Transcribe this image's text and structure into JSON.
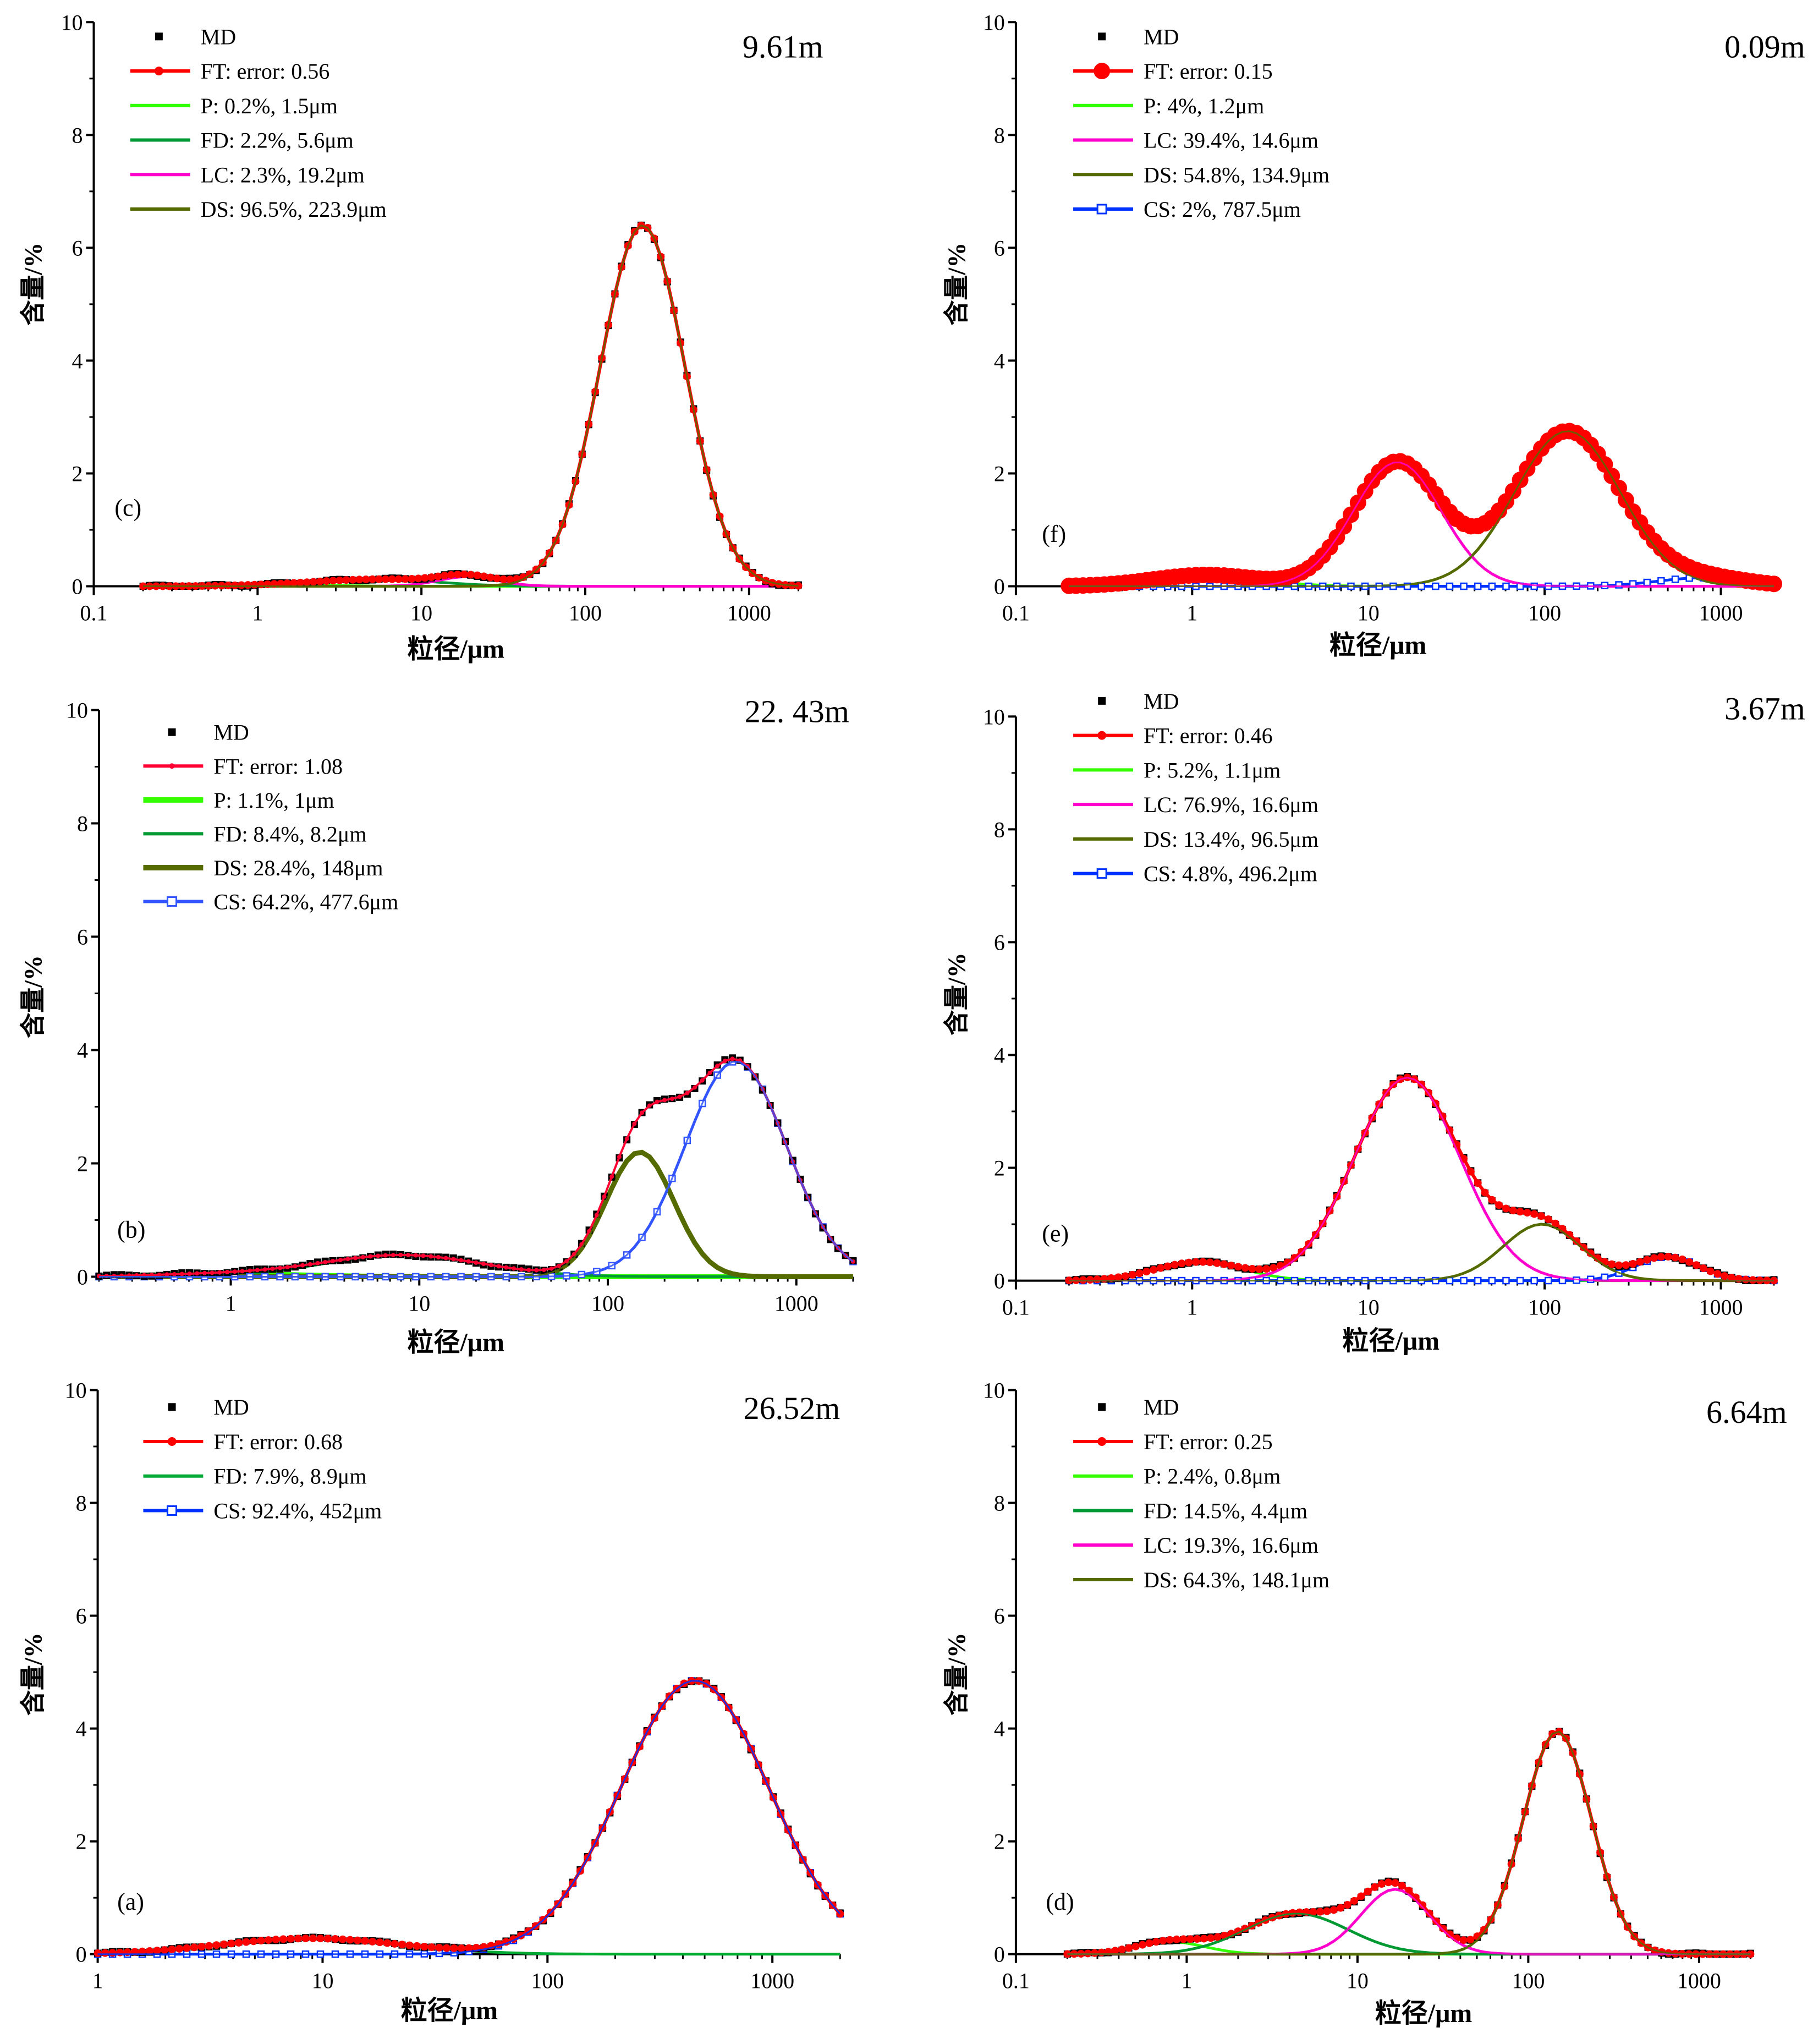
{
  "figure": {
    "panels_count": 6
  },
  "chart_data": [
    {
      "id": "c",
      "type": "line",
      "panel_label": "(c)",
      "depth_label": "9.61m",
      "xlabel": "粒径/μm",
      "ylabel": "含量/%",
      "xscale": "log",
      "xlim": [
        0.1,
        2000
      ],
      "ylim": [
        0,
        10
      ],
      "xticks": [
        "0.1",
        "1",
        "10",
        "100",
        "1000"
      ],
      "yticks": [
        "0",
        "2",
        "4",
        "6",
        "8",
        "10"
      ],
      "data_range": [
        0.2,
        2000
      ],
      "legend": [
        {
          "key": "MD",
          "label": "MD",
          "color": "#000000",
          "style": "square"
        },
        {
          "key": "FT",
          "label": "FT: error: 0.56",
          "color": "#ff0000",
          "style": "line-dot"
        },
        {
          "key": "P",
          "label": "P: 0.2%, 1.5μm",
          "color": "#33ff00",
          "style": "line"
        },
        {
          "key": "FD",
          "label": "FD: 2.2%, 5.6μm",
          "color": "#009933",
          "style": "line"
        },
        {
          "key": "LC",
          "label": "LC: 2.3%, 19.2μm",
          "color": "#ff00cc",
          "style": "line"
        },
        {
          "key": "DS",
          "label": "DS: 96.5%, 223.9μm",
          "color": "#556b00",
          "style": "line"
        }
      ],
      "components": [
        {
          "key": "P",
          "mode": 1.5,
          "peak": 0.02,
          "sigma": 0.3
        },
        {
          "key": "FD",
          "mode": 5.6,
          "peak": 0.12,
          "sigma": 0.35
        },
        {
          "key": "LC",
          "mode": 19.2,
          "peak": 0.17,
          "sigma": 0.18
        },
        {
          "key": "DS",
          "mode": 223.9,
          "peak": 6.4,
          "sigma": 0.26
        }
      ]
    },
    {
      "id": "f",
      "type": "line",
      "panel_label": "(f)",
      "depth_label": "0.09m",
      "xlabel": "粒径/μm",
      "ylabel": "含量/%",
      "xscale": "log",
      "xlim": [
        0.1,
        2000
      ],
      "ylim": [
        0,
        10
      ],
      "xticks": [
        "0.1",
        "1",
        "10",
        "100",
        "1000"
      ],
      "yticks": [
        "0",
        "2",
        "4",
        "6",
        "8",
        "10"
      ],
      "data_range": [
        0.2,
        2000
      ],
      "legend": [
        {
          "key": "MD",
          "label": "MD",
          "color": "#000000",
          "style": "square"
        },
        {
          "key": "FT",
          "label": "FT: error: 0.15",
          "color": "#ff0000",
          "style": "line-bigdot"
        },
        {
          "key": "P",
          "label": "P: 4%, 1.2μm",
          "color": "#33ff00",
          "style": "line"
        },
        {
          "key": "LC",
          "label": "LC: 39.4%, 14.6μm",
          "color": "#ff00cc",
          "style": "line"
        },
        {
          "key": "DS",
          "label": "DS: 54.8%, 134.9μm",
          "color": "#556b00",
          "style": "line"
        },
        {
          "key": "CS",
          "label": "CS: 2%, 787.5μm",
          "color": "#0033ff",
          "style": "line-opensquare"
        }
      ],
      "components": [
        {
          "key": "P",
          "mode": 1.2,
          "peak": 0.2,
          "sigma": 0.3
        },
        {
          "key": "LC",
          "mode": 14.6,
          "peak": 2.2,
          "sigma": 0.25
        },
        {
          "key": "DS",
          "mode": 134.9,
          "peak": 2.75,
          "sigma": 0.3
        },
        {
          "key": "CS",
          "mode": 787.5,
          "peak": 0.15,
          "sigma": 0.25
        }
      ]
    },
    {
      "id": "b",
      "type": "line",
      "panel_label": "(b)",
      "depth_label": "22. 43m",
      "xlabel": "粒径/μm",
      "ylabel": "含量/%",
      "xscale": "log",
      "xlim": [
        0.2,
        2000
      ],
      "ylim": [
        0,
        10
      ],
      "xticks": [
        "1",
        "10",
        "100",
        "1000"
      ],
      "yticks": [
        "0",
        "2",
        "4",
        "6",
        "8",
        "10"
      ],
      "data_range": [
        0.2,
        2000
      ],
      "legend": [
        {
          "key": "MD",
          "label": "MD",
          "color": "#000000",
          "style": "square"
        },
        {
          "key": "FT",
          "label": "FT: error: 1.08",
          "color": "#ff0033",
          "style": "line-smalldot"
        },
        {
          "key": "P",
          "label": "P: 1.1%, 1μm",
          "color": "#33ff00",
          "style": "thickline"
        },
        {
          "key": "FD",
          "label": "FD: 8.4%, 8.2μm",
          "color": "#009933",
          "style": "line"
        },
        {
          "key": "DS",
          "label": "DS: 28.4%, 148μm",
          "color": "#556b00",
          "style": "thickline"
        },
        {
          "key": "CS",
          "label": "CS: 64.2%, 477.6μm",
          "color": "#3355ff",
          "style": "line-opensquare"
        }
      ],
      "components": [
        {
          "key": "P",
          "mode": 1.0,
          "peak": 0.05,
          "sigma": 0.4
        },
        {
          "key": "FD",
          "mode": 8.2,
          "peak": 0.38,
          "sigma": 0.42
        },
        {
          "key": "DS",
          "mode": 148,
          "peak": 2.2,
          "sigma": 0.18
        },
        {
          "key": "CS",
          "mode": 477.6,
          "peak": 3.8,
          "sigma": 0.27
        }
      ]
    },
    {
      "id": "e",
      "type": "line",
      "panel_label": "(e)",
      "depth_label": "3.67m",
      "xlabel": "粒径/μm",
      "ylabel": "含量/%",
      "xscale": "log",
      "xlim": [
        0.1,
        2000
      ],
      "ylim": [
        0,
        10
      ],
      "xticks": [
        "0.1",
        "1",
        "10",
        "100",
        "1000"
      ],
      "yticks": [
        "0",
        "2",
        "4",
        "6",
        "8",
        "10"
      ],
      "data_range": [
        0.2,
        2000
      ],
      "legend": [
        {
          "key": "MD",
          "label": "MD",
          "color": "#000000",
          "style": "square"
        },
        {
          "key": "FT",
          "label": "FT: error: 0.46",
          "color": "#ff0000",
          "style": "line-dot"
        },
        {
          "key": "P",
          "label": "P: 5.2%, 1.1μm",
          "color": "#33ff00",
          "style": "line"
        },
        {
          "key": "LC",
          "label": "LC: 76.9%, 16.6μm",
          "color": "#ff00cc",
          "style": "line"
        },
        {
          "key": "DS",
          "label": "DS: 13.4%, 96.5μm",
          "color": "#556b00",
          "style": "line"
        },
        {
          "key": "CS",
          "label": "CS: 4.8%, 496.2μm",
          "color": "#0033ff",
          "style": "line-opensquare"
        }
      ],
      "components": [
        {
          "key": "P",
          "mode": 1.1,
          "peak": 0.33,
          "sigma": 0.25
        },
        {
          "key": "LC",
          "mode": 16.6,
          "peak": 3.6,
          "sigma": 0.3
        },
        {
          "key": "DS",
          "mode": 96.5,
          "peak": 1.0,
          "sigma": 0.22
        },
        {
          "key": "CS",
          "mode": 496.2,
          "peak": 0.42,
          "sigma": 0.18
        }
      ]
    },
    {
      "id": "a",
      "type": "line",
      "panel_label": "(a)",
      "depth_label": "26.52m",
      "xlabel": "粒径/μm",
      "ylabel": "含量/%",
      "xscale": "log",
      "xlim": [
        1,
        2000
      ],
      "ylim": [
        0,
        10
      ],
      "xticks": [
        "1",
        "10",
        "100",
        "1000"
      ],
      "yticks": [
        "0",
        "2",
        "4",
        "6",
        "8",
        "10"
      ],
      "data_range": [
        1,
        2000
      ],
      "legend": [
        {
          "key": "MD",
          "label": "MD",
          "color": "#000000",
          "style": "square"
        },
        {
          "key": "FT",
          "label": "FT: error: 0.68",
          "color": "#ff0000",
          "style": "line-dot"
        },
        {
          "key": "FD",
          "label": "FD: 7.9%, 8.9μm",
          "color": "#00aa33",
          "style": "line"
        },
        {
          "key": "CS",
          "label": "CS: 92.4%, 452μm",
          "color": "#0033ff",
          "style": "line-opensquare"
        }
      ],
      "components": [
        {
          "key": "FD",
          "mode": 8.9,
          "peak": 0.28,
          "sigma": 0.4
        },
        {
          "key": "CS",
          "mode": 452,
          "peak": 4.85,
          "sigma": 0.33
        }
      ]
    },
    {
      "id": "d",
      "type": "line",
      "panel_label": "(d)",
      "depth_label": "6.64m",
      "xlabel": "粒径/μm",
      "ylabel": "含量/%",
      "xscale": "log",
      "xlim": [
        0.1,
        2000
      ],
      "ylim": [
        0,
        10
      ],
      "xticks": [
        "0.1",
        "1",
        "10",
        "100",
        "1000"
      ],
      "yticks": [
        "0",
        "2",
        "4",
        "6",
        "8",
        "10"
      ],
      "data_range": [
        0.2,
        2000
      ],
      "legend": [
        {
          "key": "MD",
          "label": "MD",
          "color": "#000000",
          "style": "square"
        },
        {
          "key": "FT",
          "label": "FT: error: 0.25",
          "color": "#ff0000",
          "style": "line-dot"
        },
        {
          "key": "P",
          "label": "P: 2.4%, 0.8μm",
          "color": "#33ff00",
          "style": "line"
        },
        {
          "key": "FD",
          "label": "FD: 14.5%, 4.4μm",
          "color": "#009933",
          "style": "line"
        },
        {
          "key": "LC",
          "label": "LC: 19.3%, 16.6μm",
          "color": "#ff00cc",
          "style": "line"
        },
        {
          "key": "DS",
          "label": "DS: 64.3%, 148.1μm",
          "color": "#556b00",
          "style": "line"
        }
      ],
      "components": [
        {
          "key": "P",
          "mode": 0.8,
          "peak": 0.22,
          "sigma": 0.2
        },
        {
          "key": "FD",
          "mode": 4.4,
          "peak": 0.72,
          "sigma": 0.3
        },
        {
          "key": "LC",
          "mode": 16.6,
          "peak": 1.15,
          "sigma": 0.2
        },
        {
          "key": "DS",
          "mode": 148.1,
          "peak": 3.95,
          "sigma": 0.2
        }
      ]
    }
  ]
}
